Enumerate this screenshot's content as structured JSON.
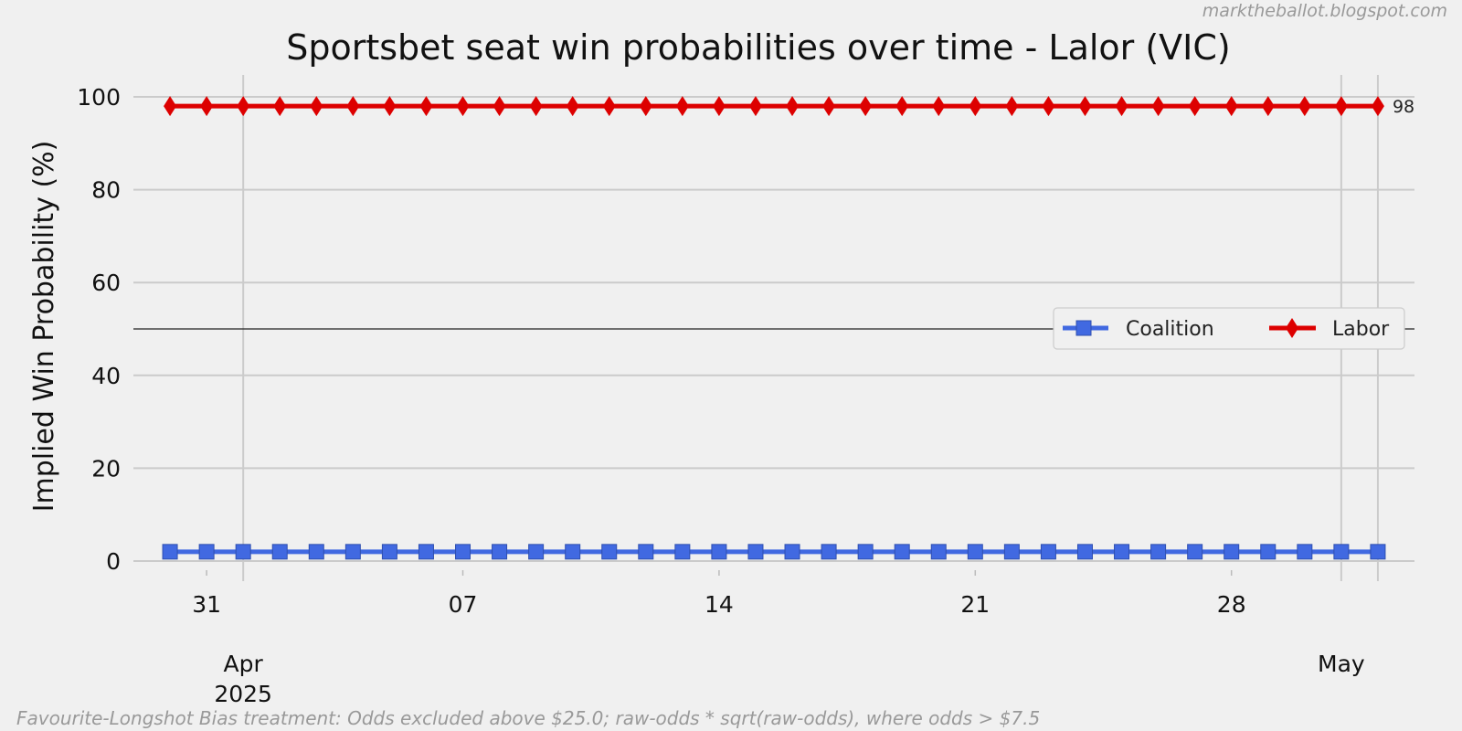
{
  "watermark": "marktheballot.blogspot.com",
  "footnote": "Favourite-Longshot Bias treatment: Odds excluded above $25.0; raw-odds * sqrt(raw-odds), where odds > $7.5",
  "chart_data": {
    "type": "line",
    "title": "Sportsbet seat win probabilities over time - Lalor (VIC)",
    "xlabel": "",
    "ylabel": "Implied Win Probability (%)",
    "ylim": [
      0,
      100
    ],
    "yticks": [
      0,
      20,
      40,
      60,
      80,
      100
    ],
    "xlim": [
      "2025-03-29",
      "2025-05-03"
    ],
    "x_tick_labels": [
      {
        "date": "2025-03-31",
        "label": "31"
      },
      {
        "date": "2025-04-07",
        "label": "07"
      },
      {
        "date": "2025-04-14",
        "label": "14"
      },
      {
        "date": "2025-04-21",
        "label": "21"
      },
      {
        "date": "2025-04-28",
        "label": "28"
      }
    ],
    "month_labels": [
      {
        "date": "2025-04-01",
        "label": "Apr",
        "sublabel": "2025"
      },
      {
        "date": "2025-05-01",
        "label": "May",
        "sublabel": ""
      }
    ],
    "grid": true,
    "reference_line": 50,
    "legend_position": "center-right",
    "x": [
      "2025-03-30",
      "2025-03-31",
      "2025-04-01",
      "2025-04-02",
      "2025-04-03",
      "2025-04-04",
      "2025-04-05",
      "2025-04-06",
      "2025-04-07",
      "2025-04-08",
      "2025-04-09",
      "2025-04-10",
      "2025-04-11",
      "2025-04-12",
      "2025-04-13",
      "2025-04-14",
      "2025-04-15",
      "2025-04-16",
      "2025-04-17",
      "2025-04-18",
      "2025-04-19",
      "2025-04-20",
      "2025-04-21",
      "2025-04-22",
      "2025-04-23",
      "2025-04-24",
      "2025-04-25",
      "2025-04-26",
      "2025-04-27",
      "2025-04-28",
      "2025-04-29",
      "2025-04-30",
      "2025-05-01",
      "2025-05-02"
    ],
    "series": [
      {
        "name": "Coalition",
        "color": "#4169e1",
        "marker": "square",
        "values": [
          2,
          2,
          2,
          2,
          2,
          2,
          2,
          2,
          2,
          2,
          2,
          2,
          2,
          2,
          2,
          2,
          2,
          2,
          2,
          2,
          2,
          2,
          2,
          2,
          2,
          2,
          2,
          2,
          2,
          2,
          2,
          2,
          2,
          2
        ]
      },
      {
        "name": "Labor",
        "color": "#dd0000",
        "marker": "diamond",
        "end_label": "98",
        "values": [
          98,
          98,
          98,
          98,
          98,
          98,
          98,
          98,
          98,
          98,
          98,
          98,
          98,
          98,
          98,
          98,
          98,
          98,
          98,
          98,
          98,
          98,
          98,
          98,
          98,
          98,
          98,
          98,
          98,
          98,
          98,
          98,
          98,
          98
        ]
      }
    ]
  }
}
